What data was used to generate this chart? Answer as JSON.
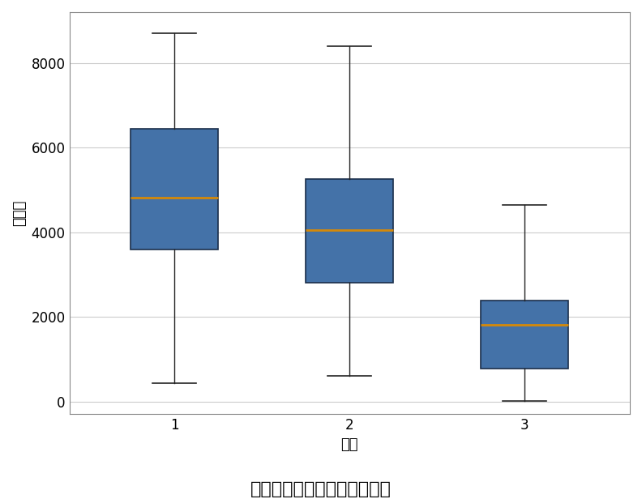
{
  "title": "共享单车使用量与天气关系图",
  "xlabel": "天气",
  "ylabel": "使用量",
  "categories": [
    "1",
    "2",
    "3"
  ],
  "box_stats": [
    {
      "label": "1",
      "whislo": 430,
      "q1": 3600,
      "med": 4820,
      "q3": 6450,
      "whishi": 8700,
      "fliers": []
    },
    {
      "label": "2",
      "whislo": 600,
      "q1": 2800,
      "med": 4050,
      "q3": 5250,
      "whishi": 8400,
      "fliers": []
    },
    {
      "label": "3",
      "whislo": 10,
      "q1": 780,
      "med": 1820,
      "q3": 2380,
      "whishi": 4650,
      "fliers": []
    }
  ],
  "box_facecolor": "#4472a8",
  "box_edgecolor": "#1a2e4a",
  "median_color": "#d4890a",
  "whisker_color": "#222222",
  "cap_color": "#222222",
  "background_color": "#ffffff",
  "plot_bg_color": "#ffffff",
  "grid_color": "#cccccc",
  "spine_color": "#888888",
  "ylim": [
    -300,
    9200
  ],
  "yticks": [
    0,
    2000,
    4000,
    6000,
    8000
  ],
  "xlim": [
    0.4,
    3.6
  ],
  "box_width": 0.5,
  "title_fontsize": 16,
  "label_fontsize": 13,
  "tick_fontsize": 12
}
